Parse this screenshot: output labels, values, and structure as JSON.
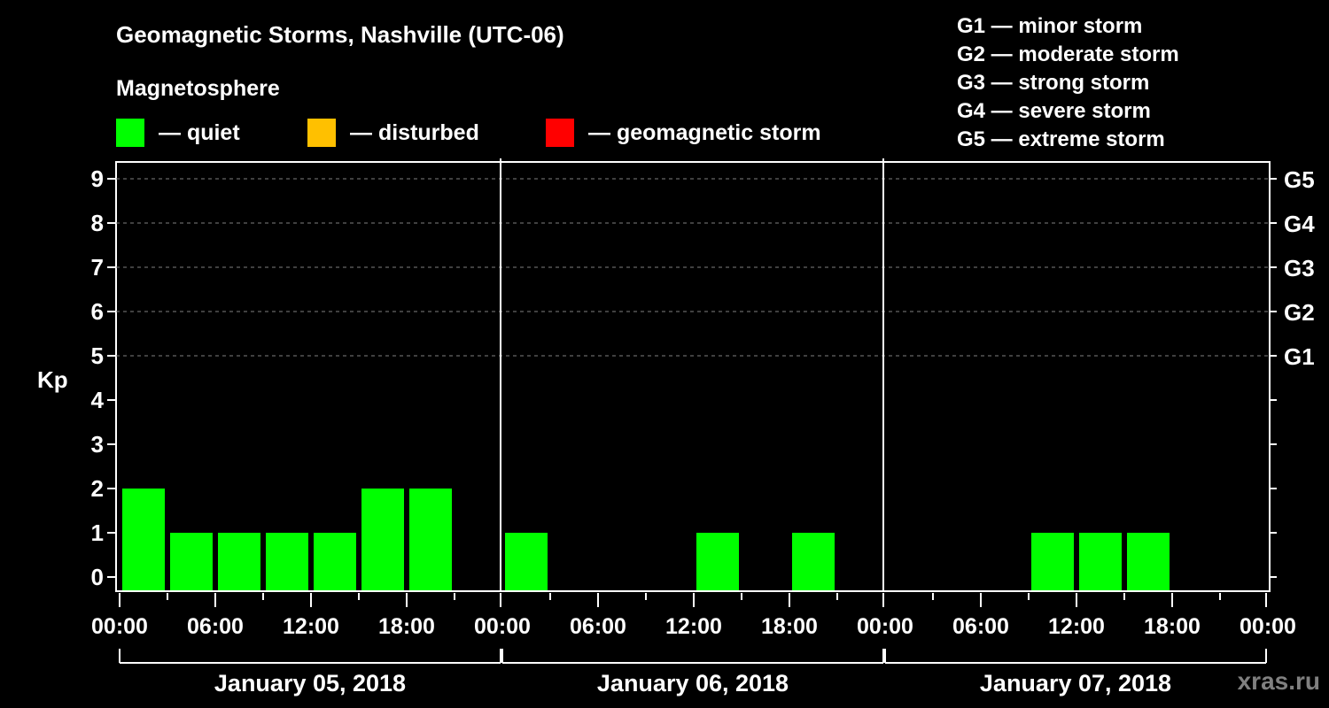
{
  "header": {
    "title": "Geomagnetic Storms, Nashville (UTC-06)",
    "subtitle": "Magnetosphere"
  },
  "legend": [
    {
      "label": "— quiet",
      "color": "#00ff00"
    },
    {
      "label": "— disturbed",
      "color": "#ffc000"
    },
    {
      "label": "— geomagnetic storm",
      "color": "#ff0000"
    }
  ],
  "storm_scale": [
    {
      "label": "G1 — minor storm"
    },
    {
      "label": "G2 — moderate storm"
    },
    {
      "label": "G3 — strong storm"
    },
    {
      "label": "G4 — severe storm"
    },
    {
      "label": "G5 — extreme storm"
    }
  ],
  "watermark": "xras.ru",
  "colors": {
    "background": "#000000",
    "axis": "#ffffff",
    "grid": "#808080",
    "quiet": "#00ff00",
    "disturbed": "#ffc000",
    "storm": "#ff0000"
  },
  "chart_data": {
    "type": "bar",
    "title": "Geomagnetic Storms, Nashville (UTC-06)",
    "subtitle": "Magnetosphere",
    "ylabel": "Kp",
    "ylim": [
      0,
      9
    ],
    "yticks": [
      0,
      1,
      2,
      3,
      4,
      5,
      6,
      7,
      8,
      9
    ],
    "right_axis_labels": [
      {
        "kp": 5,
        "label": "G1"
      },
      {
        "kp": 6,
        "label": "G2"
      },
      {
        "kp": 7,
        "label": "G3"
      },
      {
        "kp": 8,
        "label": "G4"
      },
      {
        "kp": 9,
        "label": "G5"
      }
    ],
    "grid": "dashed horizontal at Kp 5-9",
    "interval_hours": 3,
    "xtick_labels": [
      "00:00",
      "06:00",
      "12:00",
      "18:00",
      "00:00",
      "06:00",
      "12:00",
      "18:00",
      "00:00",
      "06:00",
      "12:00",
      "18:00",
      "00:00"
    ],
    "days": [
      {
        "date": "January 05, 2018",
        "categories": [
          "00:00",
          "03:00",
          "06:00",
          "09:00",
          "12:00",
          "15:00",
          "18:00",
          "21:00"
        ],
        "values": [
          2,
          1,
          1,
          1,
          1,
          2,
          2,
          0
        ]
      },
      {
        "date": "January 06, 2018",
        "categories": [
          "00:00",
          "03:00",
          "06:00",
          "09:00",
          "12:00",
          "15:00",
          "18:00",
          "21:00"
        ],
        "values": [
          1,
          0,
          0,
          0,
          1,
          0,
          1,
          0
        ]
      },
      {
        "date": "January 07, 2018",
        "categories": [
          "00:00",
          "03:00",
          "06:00",
          "09:00",
          "12:00",
          "15:00",
          "18:00",
          "21:00"
        ],
        "values": [
          0,
          0,
          0,
          1,
          1,
          1,
          0,
          0
        ]
      }
    ],
    "legend": [
      "quiet",
      "disturbed",
      "geomagnetic storm"
    ],
    "legend_position": "top"
  }
}
